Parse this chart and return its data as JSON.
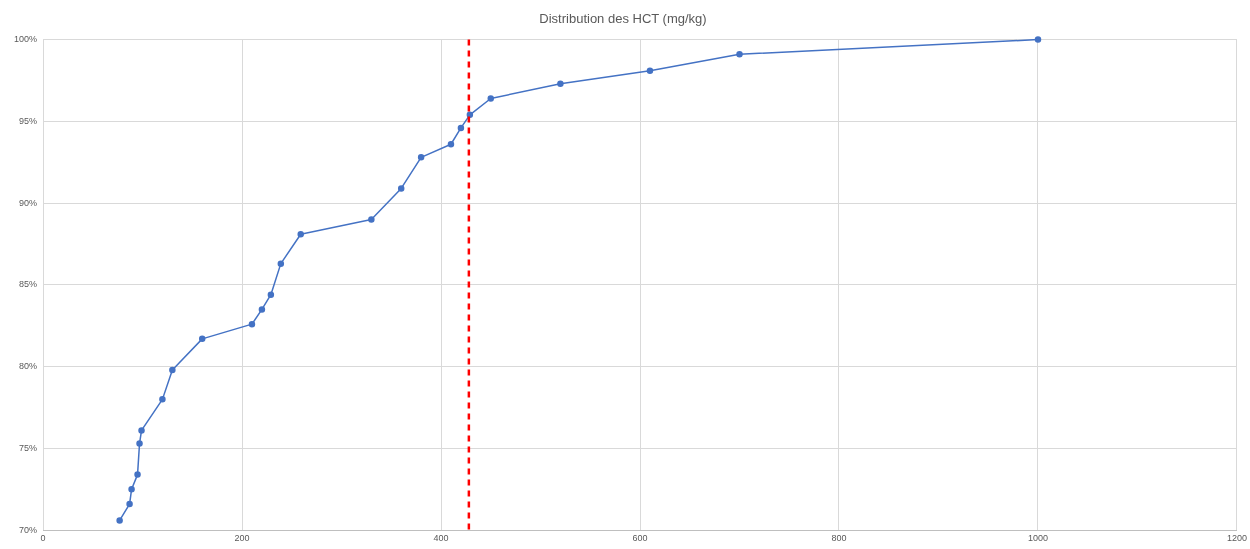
{
  "chart_data": {
    "type": "line",
    "title": "Distribution des HCT (mg/kg)",
    "x": [
      77,
      87,
      89,
      95,
      97,
      99,
      120,
      130,
      160,
      210,
      220,
      229,
      239,
      259,
      330,
      360,
      380,
      410,
      420,
      429,
      450,
      520,
      610,
      700,
      1000
    ],
    "series": [
      {
        "color": "#4472c4",
        "values": [
          70.6,
          71.6,
          72.5,
          73.4,
          75.3,
          76.1,
          78.0,
          79.8,
          81.7,
          82.6,
          83.5,
          84.4,
          86.3,
          88.1,
          89.0,
          90.9,
          92.8,
          93.6,
          94.6,
          95.4,
          96.4,
          97.3,
          98.1,
          99.1,
          100
        ]
      }
    ],
    "xlim": [
      0,
      1200
    ],
    "xticks": [
      0,
      200,
      400,
      600,
      800,
      1000,
      1200
    ],
    "ylim": [
      70,
      100
    ],
    "yticks": [
      {
        "value": 70,
        "label": "70%"
      },
      {
        "value": 75,
        "label": "75%"
      },
      {
        "value": 80,
        "label": "80%"
      },
      {
        "value": 85,
        "label": "85%"
      },
      {
        "value": 90,
        "label": "90%"
      },
      {
        "value": 95,
        "label": "95%"
      },
      {
        "value": 100,
        "label": "100%"
      }
    ],
    "ref_lines": [
      {
        "axis": "x",
        "value": 428,
        "color": "#ff0000",
        "line_style": "dashed"
      }
    ],
    "grid": true,
    "marker": "circle",
    "line_style": "solid",
    "legend": false
  }
}
